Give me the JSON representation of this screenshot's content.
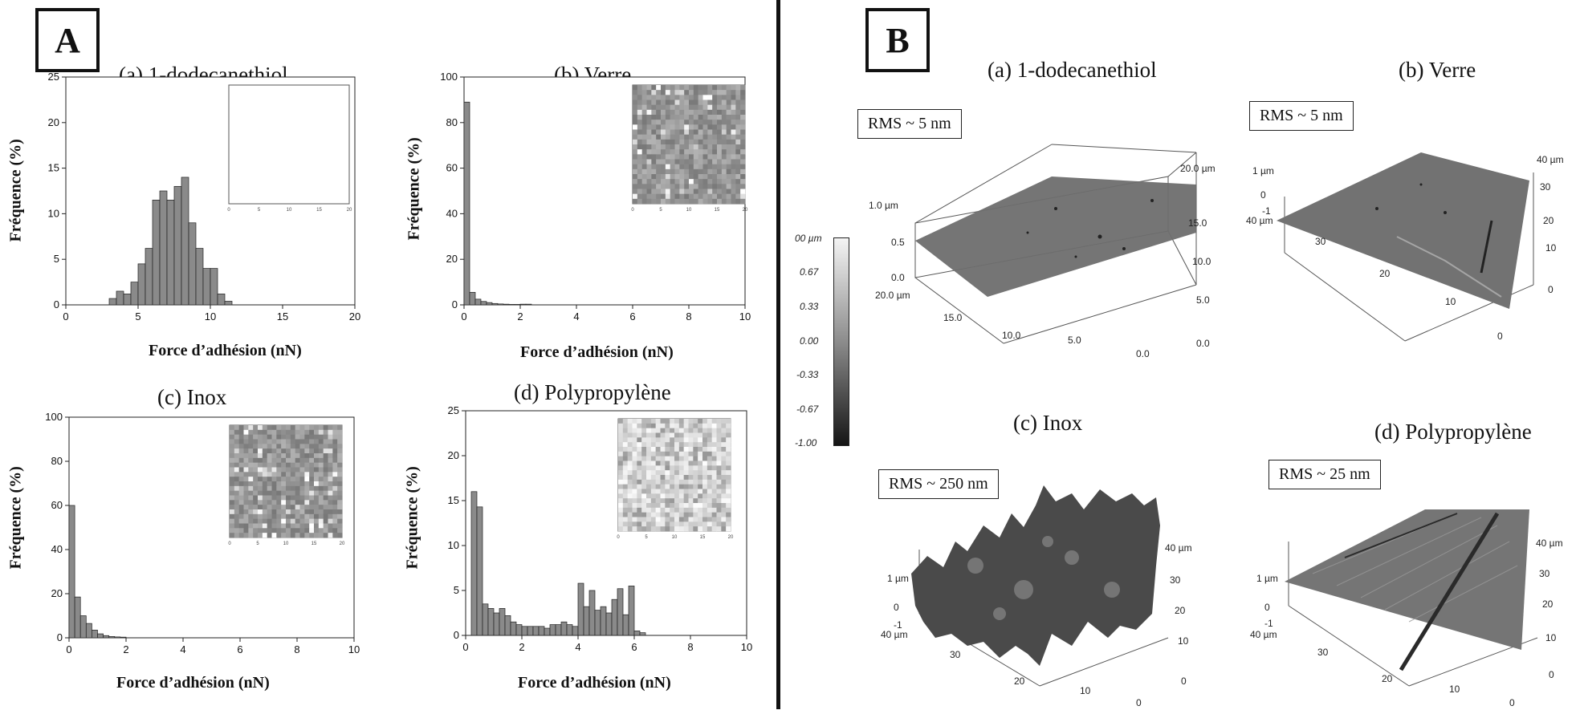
{
  "panel_a": {
    "letter": "A"
  },
  "panel_b": {
    "letter": "B"
  },
  "chart_data": [
    {
      "type": "bar",
      "title": "(a) 1-dodecanethiol",
      "xlabel": "Force d’adhésion (nN)",
      "ylabel": "Fréquence (%)",
      "xlim": [
        0,
        20
      ],
      "ylim": [
        0,
        25
      ],
      "xticks": [
        "0",
        "5",
        "10",
        "15",
        "20"
      ],
      "yticks": [
        "0",
        "5",
        "10",
        "15",
        "20",
        "25"
      ],
      "bin_width": 0.5,
      "bin_starts": [
        3,
        3.5,
        4,
        4.5,
        5,
        5.5,
        6,
        6.5,
        7,
        7.5,
        8,
        8.5,
        9,
        9.5,
        10,
        10.5,
        11
      ],
      "values": [
        0.7,
        1.5,
        1.2,
        2.5,
        4.5,
        6.2,
        11.5,
        12.5,
        11.5,
        13.0,
        14.0,
        9.0,
        6.2,
        4.0,
        4.0,
        1.2,
        0.4
      ],
      "inset": "blank map"
    },
    {
      "type": "bar",
      "title": "(b) Verre",
      "xlabel": "Force d’adhésion (nN)",
      "ylabel": "Fréquence (%)",
      "xlim": [
        0,
        10
      ],
      "ylim": [
        0,
        100
      ],
      "xticks": [
        "0",
        "2",
        "4",
        "6",
        "8",
        "10"
      ],
      "yticks": [
        "0",
        "20",
        "40",
        "60",
        "80",
        "100"
      ],
      "bin_width": 0.2,
      "bin_starts": [
        0,
        0.2,
        0.4,
        0.6,
        0.8,
        1.0,
        1.2,
        1.4,
        1.6,
        1.8,
        2.0,
        2.2
      ],
      "values": [
        89,
        5.5,
        2.5,
        1.5,
        1.0,
        0.6,
        0.4,
        0.3,
        0.2,
        0.2,
        0.3,
        0.3
      ],
      "inset": "adhesion map"
    },
    {
      "type": "bar",
      "title": "(c) Inox",
      "xlabel": "Force d’adhésion (nN)",
      "ylabel": "Fréquence (%)",
      "xlim": [
        0,
        10
      ],
      "ylim": [
        0,
        100
      ],
      "xticks": [
        "0",
        "2",
        "4",
        "6",
        "8",
        "10"
      ],
      "yticks": [
        "0",
        "20",
        "40",
        "60",
        "80",
        "100"
      ],
      "bin_width": 0.2,
      "bin_starts": [
        0,
        0.2,
        0.4,
        0.6,
        0.8,
        1.0,
        1.2,
        1.4,
        1.6,
        1.8
      ],
      "values": [
        60,
        18.5,
        10,
        6.5,
        3.5,
        1.8,
        1.0,
        0.6,
        0.4,
        0.3
      ],
      "inset": "adhesion map"
    },
    {
      "type": "bar",
      "title": "(d) Polypropylène",
      "xlabel": "Force d’adhésion (nN)",
      "ylabel": "Fréquence (%)",
      "xlim": [
        0,
        10
      ],
      "ylim": [
        0,
        25
      ],
      "xticks": [
        "0",
        "2",
        "4",
        "6",
        "8",
        "10"
      ],
      "yticks": [
        "0",
        "5",
        "10",
        "15",
        "20",
        "25"
      ],
      "bin_width": 0.2,
      "bin_starts": [
        0.2,
        0.4,
        0.6,
        0.8,
        1.0,
        1.2,
        1.4,
        1.6,
        1.8,
        2.0,
        2.2,
        2.4,
        2.6,
        2.8,
        3.0,
        3.2,
        3.4,
        3.6,
        3.8,
        4.0,
        4.2,
        4.4,
        4.6,
        4.8,
        5.0,
        5.2,
        5.4,
        5.6,
        5.8,
        6.0,
        6.2
      ],
      "values": [
        16.0,
        14.3,
        3.5,
        3.0,
        2.5,
        3.0,
        2.2,
        1.5,
        1.2,
        1.0,
        1.0,
        1.0,
        1.0,
        0.8,
        1.2,
        1.2,
        1.5,
        1.2,
        1.0,
        5.8,
        3.2,
        5.0,
        2.8,
        3.2,
        2.5,
        4.0,
        5.2,
        2.3,
        5.5,
        0.5,
        0.3
      ],
      "inset": "adhesion map"
    }
  ],
  "surfaces": [
    {
      "title": "(a) 1-dodecanethiol",
      "rms": "RMS ~ 5 nm",
      "z_labels": [
        "1.0 µm",
        "0.5",
        "0.0"
      ],
      "x_labels": [
        "20.0 µm",
        "15.0",
        "10.0",
        "5.0",
        "0.0"
      ],
      "y_labels": [
        "20.0 µm",
        "15.0",
        "10.0",
        "5.0",
        "0.0"
      ]
    },
    {
      "title": "(b) Verre",
      "rms": "RMS ~ 5 nm",
      "z_labels": [
        "1 µm",
        "0",
        "-1"
      ],
      "x_labels": [
        "40 µm",
        "30",
        "20",
        "10",
        "0"
      ],
      "y_labels": [
        "40 µm",
        "30",
        "20",
        "10",
        "0"
      ]
    },
    {
      "title": "(c) Inox",
      "rms": "RMS ~ 250 nm",
      "z_labels": [
        "1 µm",
        "0",
        "-1"
      ],
      "x_labels": [
        "40 µm",
        "30",
        "20",
        "10",
        "0"
      ],
      "y_labels": [
        "40 µm",
        "30",
        "20",
        "10",
        "0"
      ]
    },
    {
      "title": "(d) Polypropylène",
      "rms": "RMS ~ 25 nm",
      "z_labels": [
        "1 µm",
        "0",
        "-1"
      ],
      "x_labels": [
        "40 µm",
        "30",
        "20",
        "10",
        "0"
      ],
      "y_labels": [
        "40 µm",
        "30",
        "20",
        "10",
        "0"
      ]
    }
  ],
  "colorbar": {
    "labels": [
      "00 µm",
      "0.67",
      "0.33",
      "0.00",
      "-0.33",
      "-0.67",
      "-1.00"
    ],
    "range": [
      -1.0,
      1.0
    ]
  },
  "colors": {
    "bar": "#8a8a8a",
    "bar_edge": "#222222",
    "surface": "#6e6e6e"
  }
}
